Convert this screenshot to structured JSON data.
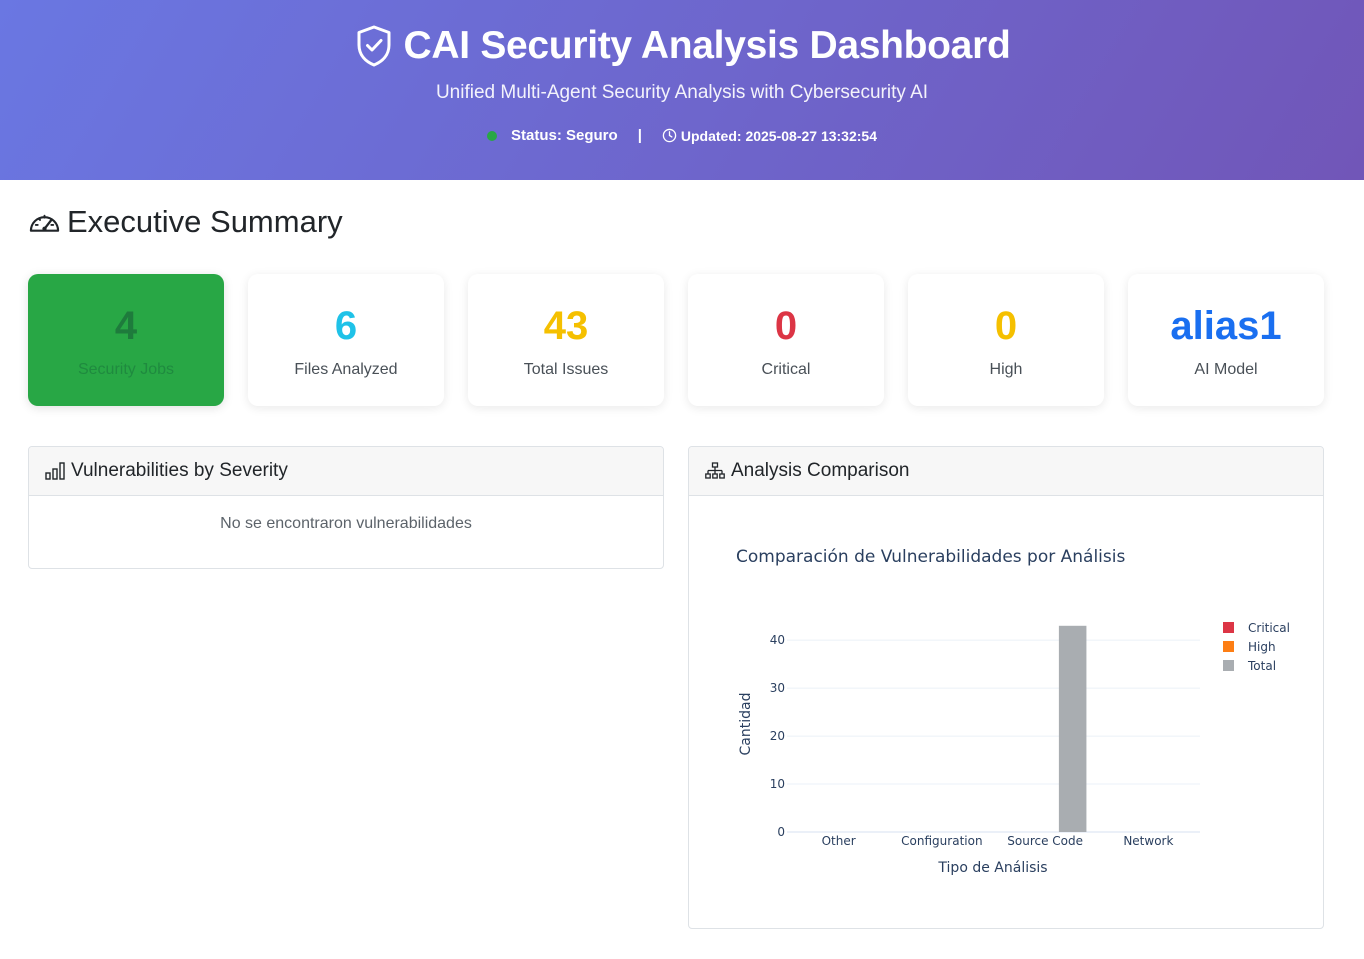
{
  "header": {
    "title": "CAI Security Analysis Dashboard",
    "subtitle": "Unified Multi-Agent Security Analysis with Cybersecurity AI",
    "status": "Status: Seguro",
    "separator": "|",
    "updated": "Updated: 2025-08-27 13:32:54",
    "icons": {
      "title": "shield-check-icon",
      "updated": "clock-icon"
    },
    "colors": {
      "gradient_start": "#6a77e2",
      "gradient_end": "#7156b8",
      "status_dot": "#28a745"
    }
  },
  "summary": {
    "title": "Executive Summary",
    "icon": "speedometer-icon",
    "metrics": [
      {
        "value": "4",
        "label": "Security Jobs",
        "color": "#1e7b3c",
        "background": "#28a745"
      },
      {
        "value": "6",
        "label": "Files Analyzed",
        "color": "#1fc2e8"
      },
      {
        "value": "43",
        "label": "Total Issues",
        "color": "#f5c000"
      },
      {
        "value": "0",
        "label": "Critical",
        "color": "#dc3545"
      },
      {
        "value": "0",
        "label": "High",
        "color": "#f5c000"
      },
      {
        "value": "alias1",
        "label": "AI Model",
        "color": "#1a6ff0"
      }
    ]
  },
  "severity_card": {
    "title": "Vulnerabilities by Severity",
    "icon": "bar-chart-icon",
    "empty_message": "No se encontraron vulnerabilidades"
  },
  "comparison_card": {
    "title": "Analysis Comparison",
    "icon": "diagram-icon"
  },
  "chart_data": {
    "type": "bar",
    "title": "Comparación de Vulnerabilidades por Análisis",
    "xlabel": "Tipo de Análisis",
    "ylabel": "Cantidad",
    "categories": [
      "Other",
      "Configuration",
      "Source Code",
      "Network"
    ],
    "series": [
      {
        "name": "Critical",
        "values": [
          0,
          0,
          0,
          0
        ],
        "color": "#dc3545"
      },
      {
        "name": "High",
        "values": [
          0,
          0,
          0,
          0
        ],
        "color": "#fd7e14"
      },
      {
        "name": "Total",
        "values": [
          0,
          0,
          43,
          0
        ],
        "color": "#a9adb1"
      }
    ],
    "ylim": [
      0,
      44
    ],
    "yticks": [
      0,
      10,
      20,
      30,
      40
    ],
    "grid": true,
    "legend": "top-right"
  }
}
